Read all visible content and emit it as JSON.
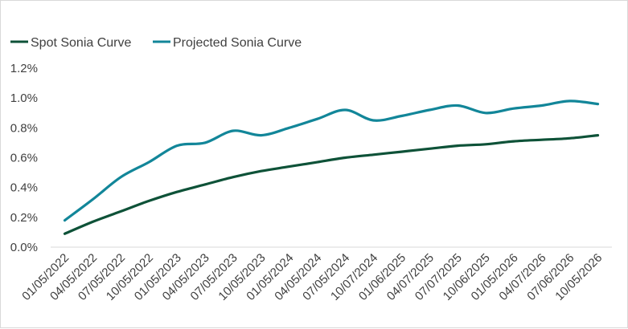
{
  "chart_data": {
    "type": "line",
    "title": "",
    "xlabel": "",
    "ylabel": "",
    "ylim": [
      0,
      1.2
    ],
    "yticks": [
      "0.0%",
      "0.2%",
      "0.4%",
      "0.6%",
      "0.8%",
      "1.0%",
      "1.2%"
    ],
    "ytick_values": [
      0,
      0.2,
      0.4,
      0.6,
      0.8,
      1.0,
      1.2
    ],
    "categories": [
      "01/05/2022",
      "04/05/2022",
      "07/05/2022",
      "10/05/2022",
      "01/05/2023",
      "04/05/2023",
      "07/05/2023",
      "10/05/2023",
      "01/05/2024",
      "04/05/2024",
      "07/05/2024",
      "10/07/2024",
      "01/06/2025",
      "04/07/2025",
      "07/07/2025",
      "10/06/2025",
      "01/05/2026",
      "04/07/2026",
      "07/06/2026",
      "10/05/2026"
    ],
    "grid": false,
    "legend_position": "top-left",
    "series": [
      {
        "name": "Spot Sonia Curve",
        "color": "#0e5238",
        "values": [
          0.09,
          0.17,
          0.24,
          0.31,
          0.37,
          0.42,
          0.47,
          0.51,
          0.54,
          0.57,
          0.6,
          0.62,
          0.64,
          0.66,
          0.68,
          0.69,
          0.71,
          0.72,
          0.73,
          0.75
        ]
      },
      {
        "name": "Projected Sonia Curve",
        "color": "#128699",
        "values": [
          0.18,
          0.32,
          0.47,
          0.57,
          0.68,
          0.7,
          0.78,
          0.75,
          0.8,
          0.86,
          0.92,
          0.85,
          0.88,
          0.92,
          0.95,
          0.9,
          0.93,
          0.95,
          0.98,
          0.96
        ]
      }
    ]
  }
}
